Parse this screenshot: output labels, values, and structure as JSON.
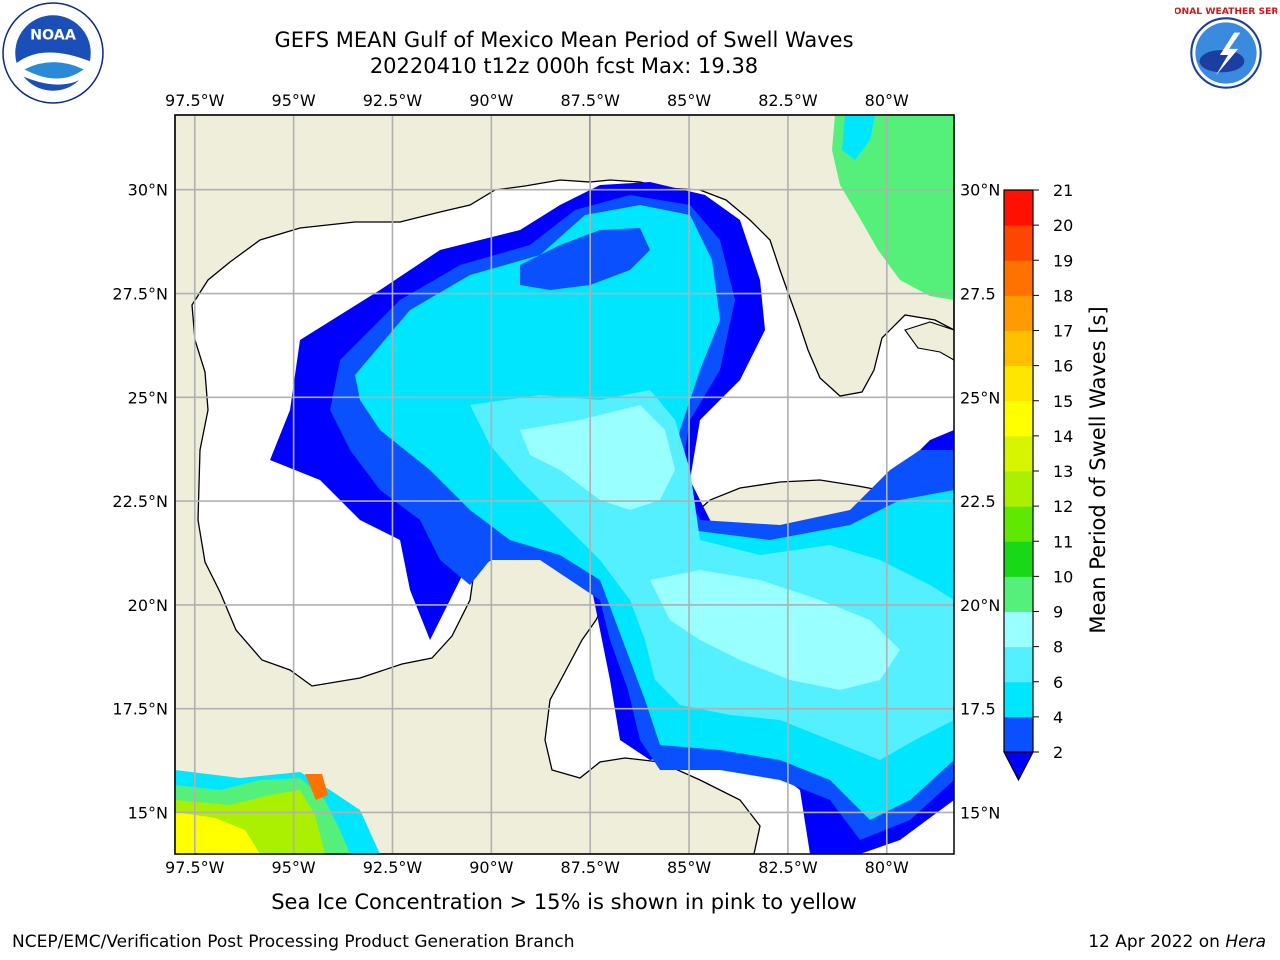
{
  "header": {
    "title": "GEFS MEAN Gulf of Mexico Mean Period of Swell Waves",
    "subtitle": "20220410 t12z 000h fcst   Max: 19.38"
  },
  "map": {
    "lon_range": [
      -98.0,
      -78.3
    ],
    "lat_range": [
      14.0,
      31.8
    ],
    "lon_ticks": [
      {
        "value": -97.5,
        "label": "97.5°W"
      },
      {
        "value": -95.0,
        "label": "95°W"
      },
      {
        "value": -92.5,
        "label": "92.5°W"
      },
      {
        "value": -90.0,
        "label": "90°W"
      },
      {
        "value": -87.5,
        "label": "87.5°W"
      },
      {
        "value": -85.0,
        "label": "85°W"
      },
      {
        "value": -82.5,
        "label": "82.5°W"
      },
      {
        "value": -80.0,
        "label": "80°W"
      }
    ],
    "lat_ticks": [
      {
        "value": 30.0,
        "label": "30°N"
      },
      {
        "value": 27.5,
        "label": "27.5°N"
      },
      {
        "value": 25.0,
        "label": "25°N"
      },
      {
        "value": 22.5,
        "label": "22.5°N"
      },
      {
        "value": 20.0,
        "label": "20°N"
      },
      {
        "value": 17.5,
        "label": "17.5°N"
      },
      {
        "value": 15.0,
        "label": "15°N"
      }
    ],
    "lat_ticks_right": [
      {
        "value": 30.0,
        "label": "30°N"
      },
      {
        "value": 27.5,
        "label": "27.5"
      },
      {
        "value": 25.0,
        "label": "25°N"
      },
      {
        "value": 22.5,
        "label": "22.5"
      },
      {
        "value": 20.0,
        "label": "20°N"
      },
      {
        "value": 17.5,
        "label": "17.5"
      },
      {
        "value": 15.0,
        "label": "15°N"
      }
    ],
    "land_color": "#efeedb",
    "grid": true
  },
  "colorbar": {
    "label": "Mean Period of Swell Waves [s]",
    "ticks": [
      "2",
      "4",
      "6",
      "8",
      "9",
      "10",
      "11",
      "12",
      "13",
      "14",
      "15",
      "16",
      "17",
      "18",
      "19",
      "20",
      "21"
    ],
    "colors": [
      "#0a50ff",
      "#00e6ff",
      "#55f0ff",
      "#99ffff",
      "#55f07a",
      "#18d818",
      "#60e800",
      "#aaf000",
      "#d7f500",
      "#ffff00",
      "#ffe600",
      "#ffc000",
      "#ff9b00",
      "#ff7200",
      "#ff4600",
      "#ff1000"
    ],
    "under_color": "#0000ff"
  },
  "note": "Sea Ice Concentration > 15% is shown in pink to yellow",
  "footer": {
    "left": "NCEP/EMC/Verification Post Processing Product Generation Branch",
    "date": "12 Apr 2022 on ",
    "machine": "Hera"
  },
  "logos": {
    "noaa_text": "NOAA",
    "nws_text": "NATIONAL WEATHER SERVICE"
  }
}
